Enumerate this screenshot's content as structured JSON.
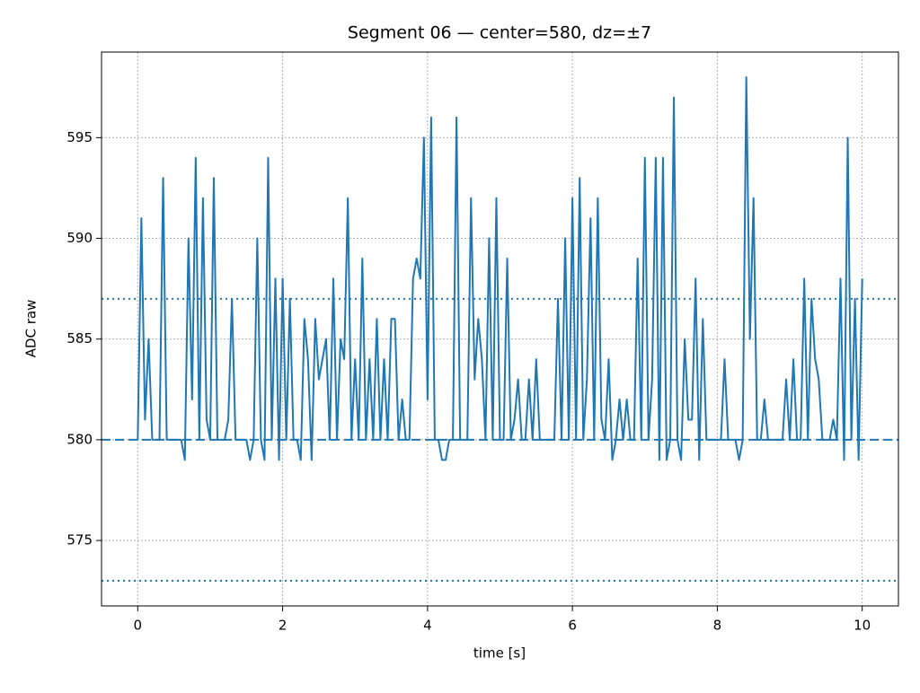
{
  "chart_data": {
    "type": "line",
    "title": "Segment 06 — center=580, dz=±7",
    "xlabel": "time [s]",
    "ylabel": "ADC raw",
    "xlim": [
      -0.5,
      10.5
    ],
    "ylim": [
      571.75,
      599.25
    ],
    "xticks": [
      0,
      2,
      4,
      6,
      8,
      10
    ],
    "yticks": [
      575,
      580,
      585,
      590,
      595
    ],
    "grid": true,
    "x": [
      0,
      0.05,
      0.1,
      0.15,
      0.2,
      0.25,
      0.3,
      0.35,
      0.4,
      0.45,
      0.5,
      0.55,
      0.6,
      0.65,
      0.7,
      0.75,
      0.8,
      0.85,
      0.9,
      0.95,
      1,
      1.05,
      1.1,
      1.15,
      1.2,
      1.25,
      1.3,
      1.35,
      1.4,
      1.45,
      1.5,
      1.55,
      1.6,
      1.65,
      1.7,
      1.75,
      1.8,
      1.85,
      1.9,
      1.95,
      2,
      2.05,
      2.1,
      2.15,
      2.2,
      2.25,
      2.3,
      2.35,
      2.4,
      2.45,
      2.5,
      2.55,
      2.6,
      2.65,
      2.7,
      2.75,
      2.8,
      2.85,
      2.9,
      2.95,
      3,
      3.05,
      3.1,
      3.15,
      3.2,
      3.25,
      3.3,
      3.35,
      3.4,
      3.45,
      3.5,
      3.55,
      3.6,
      3.65,
      3.7,
      3.75,
      3.8,
      3.85,
      3.9,
      3.95,
      4,
      4.05,
      4.1,
      4.15,
      4.2,
      4.25,
      4.3,
      4.35,
      4.4,
      4.45,
      4.5,
      4.55,
      4.6,
      4.65,
      4.7,
      4.75,
      4.8,
      4.85,
      4.9,
      4.95,
      5,
      5.05,
      5.1,
      5.15,
      5.2,
      5.25,
      5.3,
      5.35,
      5.4,
      5.45,
      5.5,
      5.55,
      5.6,
      5.65,
      5.7,
      5.75,
      5.8,
      5.85,
      5.9,
      5.95,
      6,
      6.05,
      6.1,
      6.15,
      6.2,
      6.25,
      6.3,
      6.35,
      6.4,
      6.45,
      6.5,
      6.55,
      6.6,
      6.65,
      6.7,
      6.75,
      6.8,
      6.85,
      6.9,
      6.95,
      7,
      7.05,
      7.1,
      7.15,
      7.2,
      7.25,
      7.3,
      7.35,
      7.4,
      7.45,
      7.5,
      7.55,
      7.6,
      7.65,
      7.7,
      7.75,
      7.8,
      7.85,
      7.9,
      7.95,
      8,
      8.05,
      8.1,
      8.15,
      8.2,
      8.25,
      8.3,
      8.35,
      8.4,
      8.45,
      8.5,
      8.55,
      8.6,
      8.65,
      8.7,
      8.75,
      8.8,
      8.85,
      8.9,
      8.95,
      9,
      9.05,
      9.1,
      9.15,
      9.2,
      9.25,
      9.3,
      9.35,
      9.4,
      9.45,
      9.5,
      9.55,
      9.6,
      9.65,
      9.7,
      9.75,
      9.8,
      9.85,
      9.9,
      9.95,
      10
    ],
    "series": [
      {
        "color": "#1f77b4",
        "values": [
          580,
          591,
          581,
          585,
          580,
          580,
          580,
          593,
          580,
          580,
          580,
          580,
          580,
          579,
          590,
          582,
          594,
          580,
          592,
          581,
          580,
          593,
          580,
          580,
          580,
          581,
          587,
          580,
          580,
          580,
          580,
          579,
          580,
          590,
          580,
          579,
          594,
          580,
          588,
          579,
          588,
          580,
          587,
          580,
          580,
          579,
          586,
          584,
          579,
          586,
          583,
          584,
          585,
          580,
          588,
          580,
          585,
          584,
          592,
          580,
          584,
          580,
          589,
          580,
          584,
          580,
          586,
          580,
          584,
          580,
          586,
          586,
          580,
          582,
          580,
          580,
          588,
          589,
          588,
          595,
          582,
          596,
          580,
          580,
          579,
          579,
          580,
          580,
          596,
          580,
          580,
          580,
          592,
          583,
          586,
          584,
          580,
          590,
          580,
          592,
          580,
          580,
          589,
          580,
          581,
          583,
          580,
          580,
          583,
          580,
          584,
          580,
          580,
          580,
          580,
          580,
          587,
          580,
          590,
          580,
          592,
          580,
          593,
          580,
          583,
          591,
          580,
          592,
          581,
          580,
          584,
          579,
          580,
          582,
          580,
          582,
          580,
          580,
          589,
          580,
          594,
          580,
          583,
          594,
          579,
          594,
          579,
          580,
          597,
          580,
          579,
          585,
          581,
          581,
          588,
          579,
          586,
          580,
          580,
          580,
          580,
          580,
          584,
          580,
          580,
          580,
          579,
          580,
          598,
          585,
          592,
          580,
          580,
          582,
          580,
          580,
          580,
          580,
          580,
          583,
          580,
          584,
          580,
          580,
          588,
          580,
          587,
          584,
          583,
          580,
          580,
          580,
          581,
          580,
          588,
          579,
          595,
          580,
          587,
          579,
          588
        ]
      }
    ],
    "hlines": [
      {
        "value": 580,
        "style": "dashed"
      },
      {
        "value": 587,
        "style": "dotted"
      },
      {
        "value": 573,
        "style": "dotted"
      }
    ]
  }
}
